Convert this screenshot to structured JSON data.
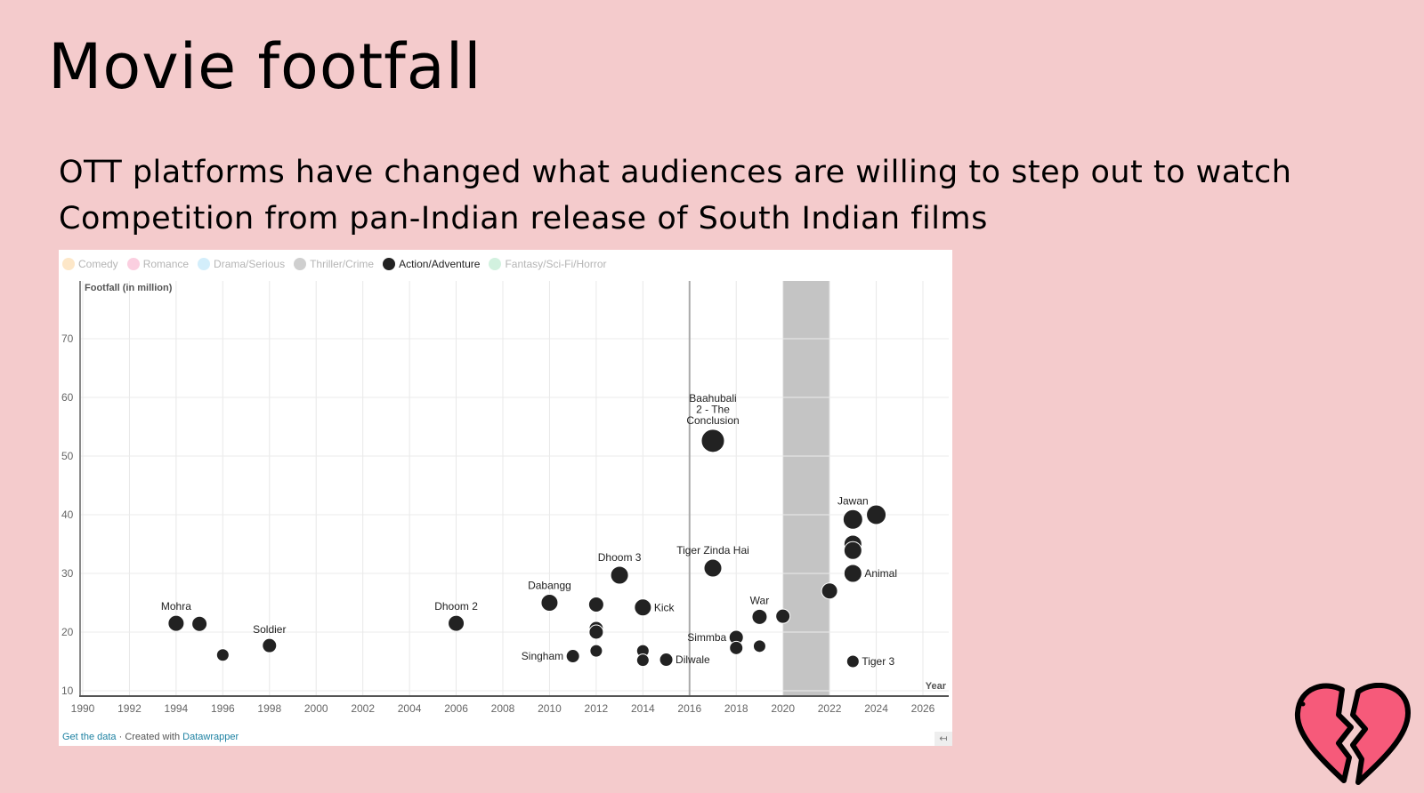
{
  "slide": {
    "title": "Movie footfall",
    "bullets": [
      "OTT platforms have changed what audiences are willing to step out to watch",
      "Competition from pan-Indian release of South Indian films"
    ],
    "icon": "broken-heart-icon"
  },
  "legend": [
    {
      "label": "Comedy",
      "color": "#fde7c8",
      "active": false
    },
    {
      "label": "Romance",
      "color": "#fbcfe0",
      "active": false
    },
    {
      "label": "Drama/Serious",
      "color": "#d3eefb",
      "active": false
    },
    {
      "label": "Thriller/Crime",
      "color": "#cfcfcf",
      "active": false
    },
    {
      "label": "Action/Adventure",
      "color": "#222222",
      "active": true
    },
    {
      "label": "Fantasy/Sci-Fi/Horror",
      "color": "#d2f1df",
      "active": false
    }
  ],
  "footer": {
    "get_data": "Get the data",
    "separator": " · Created with ",
    "tool": "Datawrapper",
    "share_icon": "↤"
  },
  "chart_data": {
    "type": "scatter",
    "title": "",
    "xlabel": "Year",
    "ylabel": "Footfall (in million)",
    "xlim": [
      1990,
      2027
    ],
    "ylim": [
      10,
      75
    ],
    "xticks": [
      1990,
      1992,
      1994,
      1996,
      1998,
      2000,
      2002,
      2004,
      2006,
      2008,
      2010,
      2012,
      2014,
      2016,
      2018,
      2020,
      2022,
      2024,
      2026
    ],
    "yticks": [
      10,
      20,
      30,
      40,
      50,
      60,
      70
    ],
    "grid": true,
    "legend_position": "top",
    "annotations": [
      {
        "type": "vertical-line",
        "x": 2016
      },
      {
        "type": "shaded-range",
        "x_start": 2020,
        "x_end": 2022,
        "color": "#c4c4c4"
      }
    ],
    "series": [
      {
        "name": "Action/Adventure",
        "color": "#222222",
        "points": [
          {
            "x": 1994,
            "y": 21.5,
            "r": 9,
            "label": "Mohra"
          },
          {
            "x": 1995,
            "y": 21.4,
            "r": 8.5,
            "label": ""
          },
          {
            "x": 1996,
            "y": 16.1,
            "r": 7,
            "label": ""
          },
          {
            "x": 1998,
            "y": 17.7,
            "r": 8,
            "label": "Soldier"
          },
          {
            "x": 2006,
            "y": 21.5,
            "r": 9,
            "label": "Dhoom 2"
          },
          {
            "x": 2010,
            "y": 25.0,
            "r": 9.5,
            "label": "Dabangg"
          },
          {
            "x": 2011,
            "y": 15.9,
            "r": 7.5,
            "label": "Singham",
            "label_pos": "left"
          },
          {
            "x": 2012,
            "y": 24.7,
            "r": 8.5,
            "label": ""
          },
          {
            "x": 2012,
            "y": 20.6,
            "r": 8,
            "label": ""
          },
          {
            "x": 2012,
            "y": 20.0,
            "r": 8,
            "label": ""
          },
          {
            "x": 2012,
            "y": 16.8,
            "r": 7,
            "label": ""
          },
          {
            "x": 2013,
            "y": 29.7,
            "r": 10,
            "label": "Dhoom 3"
          },
          {
            "x": 2014,
            "y": 24.2,
            "r": 9.5,
            "label": "Kick",
            "label_pos": "right"
          },
          {
            "x": 2014,
            "y": 16.8,
            "r": 7,
            "label": ""
          },
          {
            "x": 2014,
            "y": 15.2,
            "r": 7,
            "label": ""
          },
          {
            "x": 2015,
            "y": 15.3,
            "r": 7.5,
            "label": "Dilwale",
            "label_pos": "right"
          },
          {
            "x": 2017,
            "y": 52.6,
            "r": 13,
            "label": "Baahubali 2 - The Conclusion"
          },
          {
            "x": 2017,
            "y": 30.9,
            "r": 10,
            "label": "Tiger Zinda Hai"
          },
          {
            "x": 2018,
            "y": 19.1,
            "r": 8,
            "label": "Simmba",
            "label_pos": "left"
          },
          {
            "x": 2018,
            "y": 17.3,
            "r": 7.5,
            "label": ""
          },
          {
            "x": 2019,
            "y": 22.6,
            "r": 8.5,
            "label": "War"
          },
          {
            "x": 2019,
            "y": 17.6,
            "r": 7,
            "label": ""
          },
          {
            "x": 2020,
            "y": 22.7,
            "r": 8,
            "label": ""
          },
          {
            "x": 2022,
            "y": 27.0,
            "r": 9,
            "label": ""
          },
          {
            "x": 2023,
            "y": 39.2,
            "r": 11,
            "label": "Jawan"
          },
          {
            "x": 2024,
            "y": 40.0,
            "r": 11,
            "label": ""
          },
          {
            "x": 2023,
            "y": 35.0,
            "r": 10,
            "label": ""
          },
          {
            "x": 2023,
            "y": 33.9,
            "r": 10,
            "label": ""
          },
          {
            "x": 2023,
            "y": 30.0,
            "r": 10,
            "label": "Animal",
            "label_pos": "right"
          },
          {
            "x": 2023,
            "y": 15.0,
            "r": 7,
            "label": "Tiger 3",
            "label_pos": "right"
          }
        ]
      }
    ]
  }
}
